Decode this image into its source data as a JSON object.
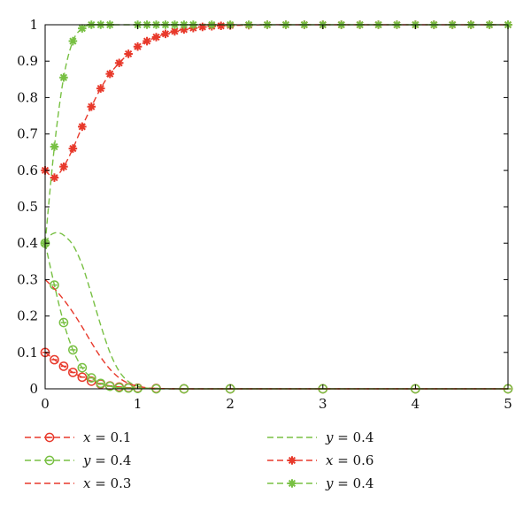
{
  "chart_data": {
    "type": "line",
    "title": "",
    "xlabel": "",
    "ylabel": "",
    "xlim": [
      0,
      5
    ],
    "ylim": [
      0,
      1
    ],
    "x_ticks": [
      "0",
      "1",
      "2",
      "3",
      "4",
      "5"
    ],
    "y_ticks": [
      "0",
      "0.1",
      "0.2",
      "0.3",
      "0.4",
      "0.5",
      "0.6",
      "0.7",
      "0.8",
      "0.9",
      "1"
    ],
    "grid": false,
    "legend_position": "bottom",
    "colors": {
      "red": "#e8392b",
      "green": "#78c043"
    },
    "series": [
      {
        "id": "x01",
        "name": "x = 0.1",
        "legend_var": "x",
        "legend_val": " = 0.1",
        "color": "#e8392b",
        "line": "dashed",
        "marker": "circle",
        "x": [
          0,
          0.1,
          0.2,
          0.3,
          0.4,
          0.5,
          0.6,
          0.7,
          0.8,
          0.9,
          1,
          1.2,
          1.5,
          2,
          3,
          4,
          5
        ],
        "y": [
          0.1,
          0.08,
          0.062,
          0.045,
          0.032,
          0.021,
          0.013,
          0.008,
          0.005,
          0.003,
          0.002,
          0.001,
          0,
          0,
          0,
          0,
          0
        ]
      },
      {
        "id": "y04a",
        "name": "y = 0.4",
        "legend_var": "y",
        "legend_val": " = 0.4",
        "color": "#78c043",
        "line": "dashed",
        "marker": "circle",
        "x": [
          0,
          0.1,
          0.2,
          0.3,
          0.4,
          0.5,
          0.6,
          0.7,
          0.8,
          0.9,
          1,
          1.2,
          1.5,
          2,
          3,
          4,
          5
        ],
        "y": [
          0.4,
          0.285,
          0.182,
          0.107,
          0.058,
          0.03,
          0.015,
          0.007,
          0.003,
          0.002,
          0.001,
          0,
          0,
          0,
          0,
          0,
          0
        ]
      },
      {
        "id": "x03",
        "name": "x = 0.3",
        "legend_var": "x",
        "legend_val": " = 0.3",
        "color": "#e8392b",
        "line": "dashed",
        "marker": "none",
        "x": [
          0,
          0.1,
          0.2,
          0.3,
          0.4,
          0.5,
          0.6,
          0.7,
          0.8,
          0.9,
          1,
          1.1,
          1.2,
          1.4,
          1.6,
          2,
          3,
          4,
          5
        ],
        "y": [
          0.3,
          0.275,
          0.245,
          0.21,
          0.17,
          0.127,
          0.087,
          0.054,
          0.03,
          0.015,
          0.007,
          0.003,
          0.001,
          0,
          0,
          0,
          0,
          0,
          0
        ]
      },
      {
        "id": "y04b",
        "name": "y = 0.4",
        "legend_var": "y",
        "legend_val": " = 0.4",
        "color": "#78c043",
        "line": "dashed",
        "marker": "none",
        "x": [
          0,
          0.05,
          0.1,
          0.15,
          0.2,
          0.3,
          0.4,
          0.5,
          0.6,
          0.7,
          0.8,
          0.9,
          1,
          1.1,
          1.2,
          1.4,
          1.6,
          2,
          3,
          4,
          5
        ],
        "y": [
          0.4,
          0.42,
          0.428,
          0.428,
          0.422,
          0.395,
          0.34,
          0.26,
          0.175,
          0.1,
          0.048,
          0.02,
          0.007,
          0.002,
          0.001,
          0,
          0,
          0,
          0,
          0,
          0
        ]
      },
      {
        "id": "x06",
        "name": "x = 0.6",
        "legend_var": "x",
        "legend_val": " = 0.6",
        "color": "#e8392b",
        "line": "dashed",
        "marker": "star",
        "x": [
          0,
          0.1,
          0.2,
          0.3,
          0.4,
          0.5,
          0.6,
          0.7,
          0.8,
          0.9,
          1,
          1.1,
          1.2,
          1.3,
          1.4,
          1.5,
          1.6,
          1.7,
          1.8,
          1.9,
          2,
          2.2,
          2.4,
          2.6,
          2.8,
          3,
          3.2,
          3.4,
          3.6,
          3.8,
          4,
          4.2,
          4.4,
          4.6,
          4.8,
          5
        ],
        "y": [
          0.6,
          0.58,
          0.61,
          0.66,
          0.72,
          0.775,
          0.825,
          0.865,
          0.895,
          0.92,
          0.94,
          0.955,
          0.966,
          0.975,
          0.982,
          0.987,
          0.991,
          0.994,
          0.996,
          0.997,
          0.998,
          0.999,
          1,
          1,
          1,
          1,
          1,
          1,
          1,
          1,
          1,
          1,
          1,
          1,
          1,
          1
        ]
      },
      {
        "id": "y04c",
        "name": "y = 0.4",
        "legend_var": "y",
        "legend_val": " = 0.4",
        "color": "#78c043",
        "line": "dashed",
        "marker": "star",
        "x": [
          0,
          0.1,
          0.2,
          0.3,
          0.4,
          0.5,
          0.6,
          0.7,
          1,
          1.1,
          1.2,
          1.3,
          1.4,
          1.5,
          1.6,
          1.8,
          2,
          2.2,
          2.4,
          2.6,
          2.8,
          3,
          3.2,
          3.4,
          3.6,
          3.8,
          4,
          4.2,
          4.4,
          4.6,
          4.8,
          5
        ],
        "y": [
          0.4,
          0.665,
          0.855,
          0.955,
          0.99,
          1,
          1,
          1,
          1,
          1,
          1,
          1,
          1,
          1,
          1,
          1,
          1,
          1,
          1,
          1,
          1,
          1,
          1,
          1,
          1,
          1,
          1,
          1,
          1,
          1,
          1,
          1
        ]
      }
    ],
    "legend_order": [
      "x01",
      "y04b",
      "y04a",
      "x06",
      "x03",
      "y04c"
    ]
  }
}
